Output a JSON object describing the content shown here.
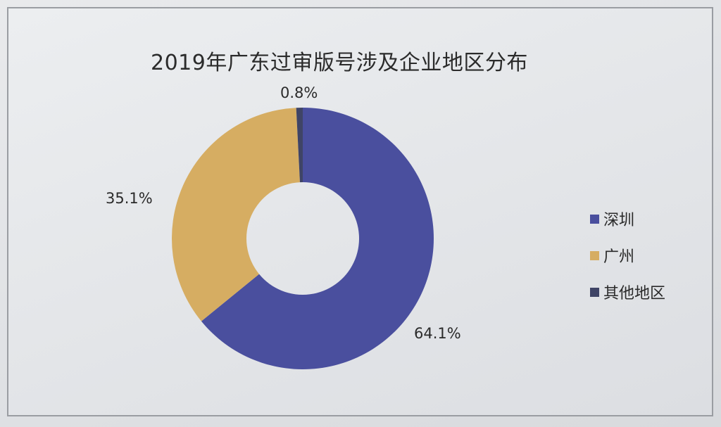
{
  "chart_data": {
    "type": "pie",
    "variant": "donut",
    "title": "2019年广东过审版号涉及企业地区分布",
    "categories": [
      "深圳",
      "广州",
      "其他地区"
    ],
    "values": [
      64.1,
      35.1,
      0.8
    ],
    "data_labels": [
      "64.1%",
      "35.1%",
      "0.8%"
    ],
    "colors": [
      "#4a4f9e",
      "#d6ad62",
      "#3f4466"
    ],
    "legend_position": "right"
  }
}
